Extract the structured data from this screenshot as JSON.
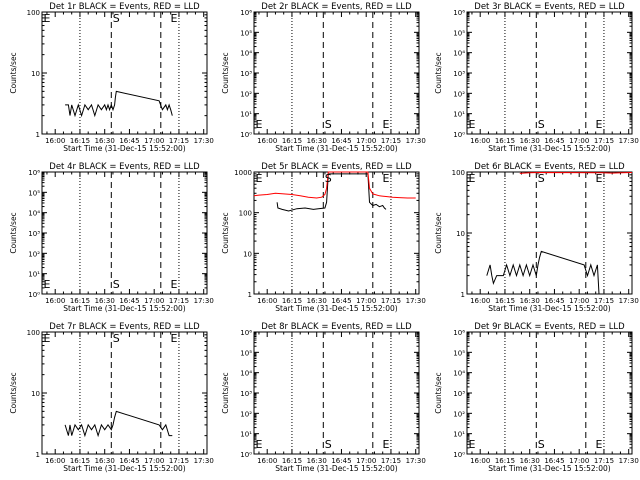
{
  "figure": {
    "colors": {
      "events": "#000000",
      "lld": "#ff0000",
      "background": "#ffffff"
    }
  },
  "chart_data": [
    {
      "type": "line",
      "title": "Det 1r BLACK = Events, RED = LLD",
      "xlabel": "Start Time (31-Dec-15 15:52:00)",
      "ylabel": "Counts/sec",
      "xticks": [
        "16:00",
        "16:15",
        "16:30",
        "16:45",
        "17:00",
        "17:15",
        "17:30"
      ],
      "xlim": [
        "15:52",
        "17:32"
      ],
      "yscale": "log",
      "ylim": [
        1,
        100
      ],
      "yticks": [
        "1",
        "10",
        "100"
      ],
      "markers": {
        "S": "16:37",
        "E": "17:12"
      },
      "series": [
        {
          "name": "Events",
          "color": "#000000",
          "x": [
            "16:06",
            "16:08",
            "16:09",
            "16:10",
            "16:12",
            "16:14",
            "16:16",
            "16:18",
            "16:20",
            "16:22",
            "16:24",
            "16:26",
            "16:28",
            "16:30",
            "16:31",
            "16:32",
            "16:33",
            "16:34",
            "16:35",
            "16:36",
            "16:36.5",
            "16:37",
            "17:03",
            "17:05",
            "17:07",
            "17:08",
            "17:09",
            "17:10",
            "17:11"
          ],
          "y": [
            3,
            3,
            2,
            3,
            2,
            3,
            2,
            3,
            2.5,
            3,
            2,
            3,
            2.5,
            3,
            2.5,
            3,
            2.5,
            3,
            2.5,
            3,
            4,
            5,
            3.5,
            2.5,
            3,
            2.5,
            3,
            2.5,
            2
          ]
        }
      ]
    },
    {
      "type": "line",
      "title": "Det 2r BLACK = Events, RED = LLD",
      "xlabel": "Start Time (31-Dec-15 15:52:00)",
      "ylabel": "Counts/sec",
      "xticks": [
        "16:00",
        "16:15",
        "16:30",
        "16:45",
        "17:00",
        "17:15",
        "17:30"
      ],
      "xlim": [
        "15:52",
        "17:32"
      ],
      "yscale": "log",
      "ylim": [
        1,
        1000000
      ],
      "yticks": [
        "10⁰",
        "10¹",
        "10²",
        "10³",
        "10⁴",
        "10⁵",
        "10⁶"
      ],
      "markers": {
        "S": "16:37",
        "E": "17:12"
      },
      "series": []
    },
    {
      "type": "line",
      "title": "Det 3r BLACK = Events, RED = LLD",
      "xlabel": "Start Time (31-Dec-15 15:52:00)",
      "ylabel": "Counts/sec",
      "xticks": [
        "16:00",
        "16:15",
        "16:30",
        "16:45",
        "17:00",
        "17:15",
        "17:30"
      ],
      "xlim": [
        "15:52",
        "17:32"
      ],
      "yscale": "log",
      "ylim": [
        1,
        1000000
      ],
      "yticks": [
        "10⁰",
        "10¹",
        "10²",
        "10³",
        "10⁴",
        "10⁵",
        "10⁶"
      ],
      "markers": {
        "S": "16:37",
        "E": "17:12"
      },
      "series": []
    },
    {
      "type": "line",
      "title": "Det 4r BLACK = Events, RED = LLD",
      "xlabel": "Start Time (31-Dec-15 15:52:00)",
      "ylabel": "Counts/sec",
      "xticks": [
        "16:00",
        "16:15",
        "16:30",
        "16:45",
        "17:00",
        "17:15",
        "17:30"
      ],
      "xlim": [
        "15:52",
        "17:32"
      ],
      "yscale": "log",
      "ylim": [
        1,
        1000000
      ],
      "yticks": [
        "10⁰",
        "10¹",
        "10²",
        "10³",
        "10⁴",
        "10⁵",
        "10⁶"
      ],
      "markers": {
        "S": "16:37",
        "E": "17:12"
      },
      "series": []
    },
    {
      "type": "line",
      "title": "Det 5r BLACK = Events, RED = LLD",
      "xlabel": "Start Time (31-Dec-15 15:52:00)",
      "ylabel": "Counts/sec",
      "xticks": [
        "16:00",
        "16:15",
        "16:30",
        "16:45",
        "17:00",
        "17:15",
        "17:30"
      ],
      "xlim": [
        "15:52",
        "17:32"
      ],
      "yscale": "log",
      "ylim": [
        1,
        1000
      ],
      "yticks": [
        "1",
        "10",
        "100",
        "1000"
      ],
      "markers": {
        "S": "16:37",
        "E": "17:12"
      },
      "series": [
        {
          "name": "Events",
          "color": "#000000",
          "x": [
            "16:06",
            "16:06.5",
            "16:09",
            "16:13",
            "16:18",
            "16:23",
            "16:28",
            "16:31",
            "16:35",
            "16:36",
            "16:37",
            "17:01",
            "17:02",
            "17:04",
            "17:06",
            "17:08",
            "17:10",
            "17:11",
            "17:12"
          ],
          "y": [
            180,
            130,
            120,
            110,
            125,
            130,
            120,
            125,
            130,
            180,
            900,
            900,
            180,
            150,
            160,
            140,
            150,
            130,
            120
          ]
        },
        {
          "name": "LLD",
          "color": "#ff0000",
          "x": [
            "15:52",
            "15:55",
            "16:00",
            "16:05",
            "16:10",
            "16:15",
            "16:20",
            "16:25",
            "16:30",
            "16:33",
            "16:35",
            "16:36",
            "16:37",
            "17:01",
            "17:02",
            "17:04",
            "17:08",
            "17:12",
            "17:16",
            "17:20",
            "17:25",
            "17:30"
          ],
          "y": [
            260,
            270,
            280,
            300,
            290,
            280,
            260,
            240,
            230,
            240,
            280,
            400,
            1000,
            1000,
            400,
            290,
            260,
            250,
            240,
            235,
            230,
            230
          ]
        }
      ]
    },
    {
      "type": "line",
      "title": "Det 6r BLACK = Events, RED = LLD",
      "xlabel": "Start Time (31-Dec-15 15:52:00)",
      "ylabel": "Counts/sec",
      "xticks": [
        "16:00",
        "16:15",
        "16:30",
        "16:45",
        "17:00",
        "17:15",
        "17:30"
      ],
      "xlim": [
        "15:52",
        "17:32"
      ],
      "yscale": "log",
      "ylim": [
        1,
        100
      ],
      "yticks": [
        "1",
        "10",
        "100"
      ],
      "markers": {
        "S": "16:37",
        "E": "17:12"
      },
      "series": [
        {
          "name": "Events",
          "color": "#000000",
          "x": [
            "16:04",
            "16:06",
            "16:07",
            "16:08",
            "16:10",
            "16:14",
            "16:16",
            "16:18",
            "16:20",
            "16:22",
            "16:24",
            "16:26",
            "16:28",
            "16:30",
            "16:32",
            "16:34",
            "16:35",
            "16:36",
            "16:37",
            "17:03",
            "17:05",
            "17:07",
            "17:09",
            "17:11",
            "17:12"
          ],
          "y": [
            2,
            3,
            2,
            1.5,
            2,
            2,
            3,
            2,
            3,
            2,
            3,
            2,
            3,
            2,
            3,
            2,
            3,
            4,
            5,
            3,
            2,
            3,
            2,
            3,
            1
          ]
        },
        {
          "name": "LLD",
          "color": "#ff0000",
          "x": [
            "16:24",
            "16:30",
            "16:36",
            "17:14",
            "17:20",
            "17:26",
            "17:32"
          ],
          "y": [
            95,
            97,
            98,
            97,
            96,
            97,
            98
          ]
        }
      ]
    },
    {
      "type": "line",
      "title": "Det 7r BLACK = Events, RED = LLD",
      "xlabel": "Start Time (31-Dec-15 15:52:00)",
      "ylabel": "Counts/sec",
      "xticks": [
        "16:00",
        "16:15",
        "16:30",
        "16:45",
        "17:00",
        "17:15",
        "17:30"
      ],
      "xlim": [
        "15:52",
        "17:32"
      ],
      "yscale": "log",
      "ylim": [
        1,
        100
      ],
      "yticks": [
        "1",
        "10",
        "100"
      ],
      "markers": {
        "S": "16:37",
        "E": "17:12"
      },
      "series": [
        {
          "name": "Events",
          "color": "#000000",
          "x": [
            "16:06",
            "16:08",
            "16:09",
            "16:10",
            "16:12",
            "16:14",
            "16:16",
            "16:18",
            "16:20",
            "16:22",
            "16:24",
            "16:26",
            "16:28",
            "16:30",
            "16:32",
            "16:34",
            "16:35",
            "16:36",
            "16:37",
            "17:03",
            "17:05",
            "17:07",
            "17:09",
            "17:11"
          ],
          "y": [
            3,
            2,
            3,
            2,
            3,
            2.5,
            3,
            2,
            3,
            2.5,
            3,
            2,
            3,
            2.5,
            3,
            2.5,
            3,
            4,
            5,
            3,
            2.5,
            3,
            2,
            2
          ]
        }
      ]
    },
    {
      "type": "line",
      "title": "Det 8r BLACK = Events, RED = LLD",
      "xlabel": "Start Time (31-Dec-15 15:52:00)",
      "ylabel": "Counts/sec",
      "xticks": [
        "16:00",
        "16:15",
        "16:30",
        "16:45",
        "17:00",
        "17:15",
        "17:30"
      ],
      "xlim": [
        "15:52",
        "17:32"
      ],
      "yscale": "log",
      "ylim": [
        1,
        1000000
      ],
      "yticks": [
        "10⁰",
        "10¹",
        "10²",
        "10³",
        "10⁴",
        "10⁵",
        "10⁶"
      ],
      "markers": {
        "S": "16:37",
        "E": "17:12"
      },
      "series": []
    },
    {
      "type": "line",
      "title": "Det 9r BLACK = Events, RED = LLD",
      "xlabel": "Start Time (31-Dec-15 15:52:00)",
      "ylabel": "Counts/sec",
      "xticks": [
        "16:00",
        "16:15",
        "16:30",
        "16:45",
        "17:00",
        "17:15",
        "17:30"
      ],
      "xlim": [
        "15:52",
        "17:32"
      ],
      "yscale": "log",
      "ylim": [
        1,
        1000000
      ],
      "yticks": [
        "10⁰",
        "10¹",
        "10²",
        "10³",
        "10⁴",
        "10⁵",
        "10⁶"
      ],
      "markers": {
        "S": "16:37",
        "E": "17:12"
      },
      "series": []
    }
  ]
}
